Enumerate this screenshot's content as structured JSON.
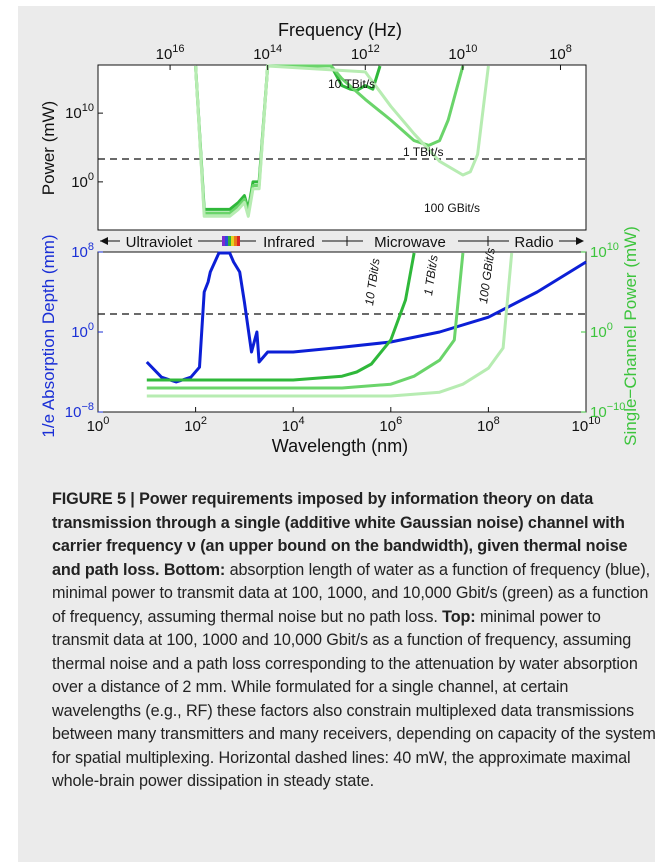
{
  "figure": {
    "top_axis_title": "Frequency (Hz)",
    "top_ticks": [
      {
        "base": "10",
        "exp": "16"
      },
      {
        "base": "10",
        "exp": "14"
      },
      {
        "base": "10",
        "exp": "12"
      },
      {
        "base": "10",
        "exp": "10"
      },
      {
        "base": "10",
        "exp": "8"
      }
    ],
    "top_ylabel": "Power (mW)",
    "top_yticks": [
      {
        "base": "10",
        "exp": "10"
      },
      {
        "base": "10",
        "exp": "0"
      }
    ],
    "top_curve_labels": [
      "10 TBit/s",
      "1 TBit/s",
      "100 GBit/s"
    ],
    "spectrum_bands": [
      "Ultraviolet",
      "Infrared",
      "Microwave",
      "Radio"
    ],
    "bottom_left_ylabel": "1/e Absorption Depth (mm)",
    "bottom_right_ylabel": "Single−Channel Power (mW)",
    "bottom_left_yticks": [
      {
        "base": "10",
        "exp": "8"
      },
      {
        "base": "10",
        "exp": "0"
      },
      {
        "base": "10",
        "exp": "−8"
      }
    ],
    "bottom_right_yticks": [
      {
        "base": "10",
        "exp": "10"
      },
      {
        "base": "10",
        "exp": "0"
      },
      {
        "base": "10",
        "exp": "−10"
      }
    ],
    "bottom_xticks": [
      {
        "base": "10",
        "exp": "0"
      },
      {
        "base": "10",
        "exp": "2"
      },
      {
        "base": "10",
        "exp": "4"
      },
      {
        "base": "10",
        "exp": "6"
      },
      {
        "base": "10",
        "exp": "8"
      },
      {
        "base": "10",
        "exp": "10"
      }
    ],
    "bottom_xlabel": "Wavelength (nm)",
    "bottom_curve_labels": [
      "10 TBit/s",
      "1 TBit/s",
      "100 GBit/s"
    ],
    "colors": {
      "absorption": "#0c1fd6",
      "green_10T": "#2fb83a",
      "green_1T": "#6ad46a",
      "green_100G": "#b7ecb2",
      "right_axis": "#3cc43c",
      "left_axis": "#1a2fd6"
    }
  },
  "caption": {
    "heading": "FIGURE 5 | Power requirements imposed by information theory on data transmission through a single (additive white Gaussian noise) channel with carrier frequency ν (an upper bound on the bandwidth), given thermal noise and path loss.",
    "bottom_label": "Bottom:",
    "bottom_text": "absorption length of water as a function of frequency (blue), minimal power to transmit data at 100, 1000, and 10,000 Gbit/s (green) as a function of frequency, assuming thermal noise but no path loss.",
    "top_label": "Top:",
    "top_text": "minimal power to transmit data at 100, 1000 and 10,000 Gbit/s as a function of frequency, assuming thermal noise and a path loss corresponding to the attenuation by water absorption over a distance of 2 mm. While formulated for a single channel, at certain wavelengths (e.g., RF) these factors also constrain multiplexed data transmissions between many transmitters and many receivers, depending on capacity of the system for spatial multiplexing. Horizontal dashed lines: 40 mW, the approximate maximal whole-brain power dissipation in steady state."
  },
  "chart_data": [
    {
      "type": "line",
      "panel": "top",
      "title": "",
      "xlabel": "Frequency (Hz)",
      "ylabel": "Power (mW)",
      "x_scale": "log",
      "y_scale": "log",
      "xlim": [
        3e+17,
        30000000.0
      ],
      "ylim": [
        1e-07,
        1e+17
      ],
      "dashed_line": 40,
      "grid": false,
      "series": [
        {
          "name": "10 TBit/s",
          "x": [
            3000000000000000.0,
            2000000000000000.0,
            1000000000000000.0,
            600000000000000.0,
            400000000000000.0,
            300000000000000.0,
            250000000000000.0,
            200000000000000.0,
            150000000000000.0,
            100000000000000.0,
            5000000000000.0,
            3000000000000.0,
            2000000000000.0,
            1500000000000.0,
            1000000000000.0,
            700000000000.0,
            500000000000.0
          ],
          "y": [
            1e+17,
            0.0001,
            0.0001,
            0.0001,
            0.001,
            0.01,
            0.0001,
            1,
            1,
            1e+17,
            1e+17,
            100000000000000.0,
            30000000000000.0,
            20000000000000.0,
            100000000000000.0,
            30000000000000.0,
            1e+17
          ]
        },
        {
          "name": "1 TBit/s",
          "x": [
            3000000000000000.0,
            2000000000000000.0,
            1000000000000000.0,
            600000000000000.0,
            400000000000000.0,
            300000000000000.0,
            250000000000000.0,
            200000000000000.0,
            150000000000000.0,
            100000000000000.0,
            5000000000000.0,
            3000000000000.0,
            1000000000000.0,
            300000000000.0,
            100000000000.0,
            50000000000.0,
            30000000000.0,
            20000000000.0,
            10000000000.0
          ],
          "y": [
            1e+17,
            3e-05,
            3e-05,
            3e-05,
            0.0003,
            0.003,
            3e-05,
            0.3,
            0.3,
            1e+17,
            1e+17,
            1000000000000000.0,
            1000000000000.0,
            1000000000.0,
            1000000.0,
            200000.0,
            1000000.0,
            1000000000.0,
            1e+17
          ]
        },
        {
          "name": "100 GBit/s",
          "x": [
            3000000000000000.0,
            2000000000000000.0,
            1000000000000000.0,
            600000000000000.0,
            400000000000000.0,
            300000000000000.0,
            250000000000000.0,
            200000000000000.0,
            150000000000000.0,
            100000000000000.0,
            1000000000000.0,
            300000000000.0,
            100000000000.0,
            30000000000.0,
            10000000000.0,
            7000000000.0,
            5000000000.0,
            3000000000.0
          ],
          "y": [
            1e+17,
            1e-05,
            1e-05,
            1e-05,
            0.0001,
            0.001,
            1e-05,
            0.1,
            0.1,
            1e+17,
            1e+16,
            100000000000.0,
            10000000.0,
            1000.0,
            10,
            30,
            10000.0,
            1e+17
          ]
        }
      ]
    },
    {
      "type": "line",
      "panel": "bottom",
      "title": "",
      "xlabel": "Wavelength (nm)",
      "ylabel": "1/e Absorption Depth (mm)",
      "y2label": "Single−Channel Power (mW)",
      "x_scale": "log",
      "y_scale": "log",
      "xlim": [
        1,
        10000000000.0
      ],
      "ylim": [
        1e-08,
        100000000.0
      ],
      "y2lim": [
        1e-10,
        10000000000.0
      ],
      "dashed_line": 40,
      "grid": false,
      "series": [
        {
          "name": "1/e Absorption Depth",
          "axis": "left",
          "x": [
            10,
            20,
            40,
            80,
            120,
            150,
            180,
            200,
            300,
            500,
            600,
            800,
            1000,
            1400,
            1800,
            2000,
            3000,
            5000,
            10000.0,
            100000.0,
            1000000.0,
            10000000.0,
            100000000.0,
            1000000000.0,
            10000000000.0
          ],
          "y": [
            0.001,
            3e-05,
            1e-05,
            3e-05,
            0.0003,
            10000,
            100000.0,
            1000000.0,
            100000000.0,
            100000000.0,
            10000000.0,
            1000000.0,
            1000,
            0.01,
            1,
            0.001,
            0.01,
            0.01,
            0.01,
            0.03,
            0.1,
            1,
            30,
            10000.0,
            10000000.0
          ]
        },
        {
          "name": "10 TBit/s",
          "axis": "right",
          "x": [
            10,
            10000.0,
            100000.0,
            200000.0,
            400000.0,
            1000000.0,
            2000000.0,
            3000000.0
          ],
          "y": [
            1e-06,
            1e-06,
            3e-06,
            1e-05,
            0.0001,
            0.1,
            10000.0,
            10000000000.0
          ]
        },
        {
          "name": "1 TBit/s",
          "axis": "right",
          "x": [
            10,
            100000.0,
            1000000.0,
            3000000.0,
            10000000.0,
            20000000.0,
            30000000.0
          ],
          "y": [
            1e-07,
            1e-07,
            3e-07,
            3e-06,
            0.0003,
            0.1,
            10000000000.0
          ]
        },
        {
          "name": "100 GBit/s",
          "axis": "right",
          "x": [
            10,
            1000000.0,
            10000000.0,
            30000000.0,
            100000000.0,
            200000000.0,
            300000000.0
          ],
          "y": [
            1e-08,
            1e-08,
            3e-08,
            3e-07,
            3e-05,
            0.01,
            10000000000.0
          ]
        }
      ]
    }
  ]
}
